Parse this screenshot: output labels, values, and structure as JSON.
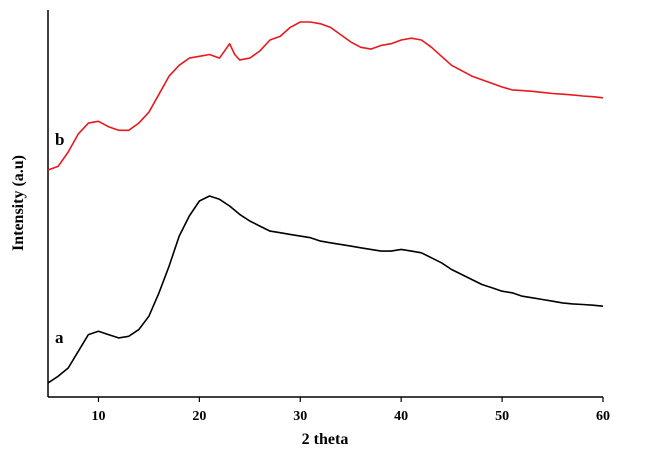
{
  "chart_data": {
    "type": "line",
    "xlabel": "2 theta",
    "ylabel": "Intensity (a.u)",
    "xlim": [
      5,
      60
    ],
    "ylim": [
      0,
      1
    ],
    "grid": false,
    "xticks": [
      10,
      20,
      30,
      40,
      50,
      60
    ],
    "series": [
      {
        "name": "a",
        "color": "#000000",
        "x": [
          5,
          6,
          7,
          8,
          9,
          10,
          11,
          12,
          13,
          14,
          15,
          16,
          17,
          18,
          19,
          20,
          21,
          22,
          23,
          24,
          25,
          26,
          27,
          28,
          29,
          30,
          31,
          32,
          33,
          34,
          35,
          36,
          37,
          38,
          39,
          40,
          41,
          42,
          43,
          44,
          45,
          46,
          47,
          48,
          49,
          50,
          51,
          52,
          53,
          54,
          55,
          56,
          57,
          58,
          59,
          60
        ],
        "y": [
          0.0,
          0.02,
          0.045,
          0.095,
          0.145,
          0.155,
          0.145,
          0.135,
          0.14,
          0.16,
          0.2,
          0.27,
          0.35,
          0.44,
          0.5,
          0.545,
          0.56,
          0.55,
          0.53,
          0.505,
          0.485,
          0.47,
          0.455,
          0.45,
          0.445,
          0.44,
          0.435,
          0.425,
          0.42,
          0.415,
          0.41,
          0.405,
          0.4,
          0.395,
          0.395,
          0.4,
          0.395,
          0.39,
          0.375,
          0.36,
          0.34,
          0.325,
          0.31,
          0.295,
          0.285,
          0.275,
          0.27,
          0.26,
          0.255,
          0.25,
          0.245,
          0.24,
          0.237,
          0.235,
          0.233,
          0.23
        ]
      },
      {
        "name": "b",
        "color": "#e8191e",
        "x": [
          5,
          6,
          7,
          8,
          9,
          10,
          11,
          12,
          13,
          14,
          15,
          16,
          17,
          18,
          19,
          20,
          21,
          22,
          22.5,
          23,
          23.5,
          24,
          25,
          26,
          27,
          28,
          29,
          30,
          31,
          32,
          33,
          34,
          35,
          36,
          37,
          38,
          39,
          40,
          41,
          42,
          43,
          44,
          45,
          46,
          47,
          48,
          49,
          50,
          51,
          52,
          53,
          54,
          55,
          56,
          57,
          58,
          59,
          60
        ],
        "y": [
          0.59,
          0.6,
          0.64,
          0.69,
          0.72,
          0.725,
          0.71,
          0.7,
          0.7,
          0.72,
          0.75,
          0.8,
          0.85,
          0.88,
          0.9,
          0.905,
          0.91,
          0.9,
          0.92,
          0.94,
          0.91,
          0.895,
          0.9,
          0.92,
          0.95,
          0.96,
          0.985,
          1.0,
          1.0,
          0.995,
          0.985,
          0.965,
          0.945,
          0.93,
          0.925,
          0.935,
          0.94,
          0.95,
          0.955,
          0.95,
          0.93,
          0.905,
          0.88,
          0.865,
          0.85,
          0.84,
          0.83,
          0.82,
          0.812,
          0.81,
          0.808,
          0.805,
          0.802,
          0.8,
          0.798,
          0.795,
          0.793,
          0.79
        ]
      }
    ]
  }
}
